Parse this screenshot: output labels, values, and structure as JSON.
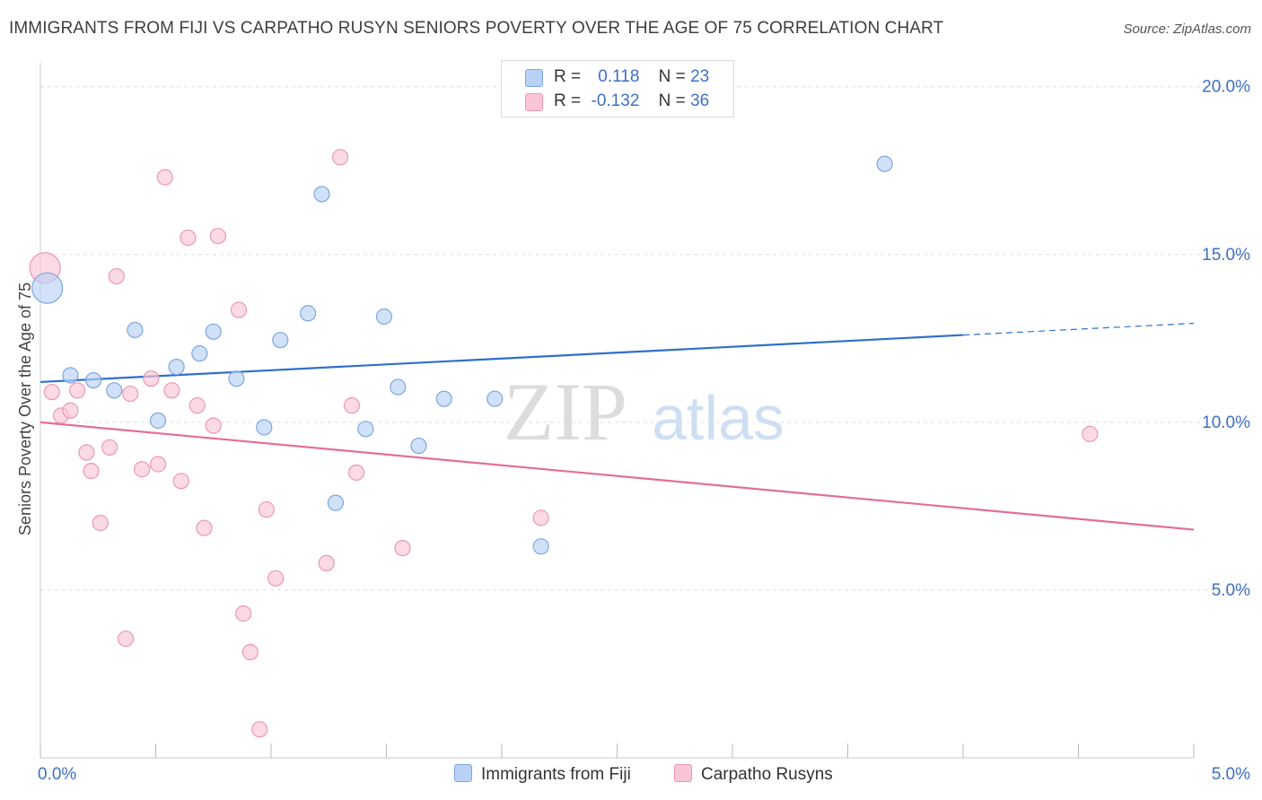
{
  "header": {
    "title": "IMMIGRANTS FROM FIJI VS CARPATHO RUSYN SENIORS POVERTY OVER THE AGE OF 75 CORRELATION CHART",
    "source": "Source: ZipAtlas.com"
  },
  "watermark": {
    "zip": "ZIP",
    "atlas": "atlas"
  },
  "legend": {
    "fiji": {
      "r_label": "R =",
      "r_value": "0.118",
      "n_label": "N =",
      "n_value": "23"
    },
    "rusyn": {
      "r_label": "R =",
      "r_value": "-0.132",
      "n_label": "N =",
      "n_value": "36"
    }
  },
  "bottom_legend": {
    "fiji": "Immigrants from Fiji",
    "rusyn": "Carpatho Rusyns"
  },
  "colors": {
    "fiji_fill": "#b9d1f5",
    "fiji_stroke": "#7ea6e0",
    "fiji_line": "#2f6fcc",
    "rusyn_fill": "#f9c6d5",
    "rusyn_stroke": "#ec98b2",
    "rusyn_line": "#e46d96",
    "tick_label": "#3f6fc6",
    "grid": "#dddddd"
  },
  "chart_data": {
    "type": "scatter",
    "title": "IMMIGRANTS FROM FIJI VS CARPATHO RUSYN SENIORS POVERTY OVER THE AGE OF 75 CORRELATION CHART",
    "xlabel": "",
    "ylabel": "Seniors Poverty Over the Age of 75",
    "xlim": [
      0,
      5
    ],
    "ylim": [
      0,
      20.5
    ],
    "x_tick_labels": [
      {
        "value": 0,
        "label": "0.0%"
      },
      {
        "value": 5,
        "label": "5.0%"
      }
    ],
    "y_tick_labels": [
      {
        "value": 5,
        "label": "5.0%"
      },
      {
        "value": 10,
        "label": "10.0%"
      },
      {
        "value": 15,
        "label": "15.0%"
      },
      {
        "value": 20,
        "label": "20.0%"
      }
    ],
    "series": [
      {
        "name": "Immigrants from Fiji",
        "r": 0.118,
        "n": 23,
        "trend": {
          "x0": 0,
          "y0": 11.2,
          "x1": 4,
          "y1": 12.6,
          "dashed_to_x": 5,
          "dashed_to_y": 12.95
        },
        "points": [
          {
            "x": 0.03,
            "y": 14.0,
            "size": "large"
          },
          {
            "x": 0.13,
            "y": 11.4
          },
          {
            "x": 0.23,
            "y": 11.25
          },
          {
            "x": 0.32,
            "y": 10.95
          },
          {
            "x": 0.41,
            "y": 12.75
          },
          {
            "x": 0.51,
            "y": 10.05
          },
          {
            "x": 0.59,
            "y": 11.65
          },
          {
            "x": 0.69,
            "y": 12.05
          },
          {
            "x": 0.75,
            "y": 12.7
          },
          {
            "x": 0.85,
            "y": 11.3
          },
          {
            "x": 0.97,
            "y": 9.85
          },
          {
            "x": 1.04,
            "y": 12.45
          },
          {
            "x": 1.16,
            "y": 13.25
          },
          {
            "x": 1.22,
            "y": 16.8
          },
          {
            "x": 1.28,
            "y": 7.6
          },
          {
            "x": 1.41,
            "y": 9.8
          },
          {
            "x": 1.49,
            "y": 13.15
          },
          {
            "x": 1.55,
            "y": 11.05
          },
          {
            "x": 1.64,
            "y": 9.3
          },
          {
            "x": 1.75,
            "y": 10.7
          },
          {
            "x": 1.97,
            "y": 10.7
          },
          {
            "x": 2.17,
            "y": 6.3
          },
          {
            "x": 3.66,
            "y": 17.7
          }
        ]
      },
      {
        "name": "Carpatho Rusyns",
        "r": -0.132,
        "n": 36,
        "trend": {
          "x0": 0,
          "y0": 10.0,
          "x1": 5,
          "y1": 6.8
        },
        "points": [
          {
            "x": 0.02,
            "y": 14.6,
            "size": "large"
          },
          {
            "x": 0.05,
            "y": 10.9
          },
          {
            "x": 0.09,
            "y": 10.2
          },
          {
            "x": 0.13,
            "y": 10.35
          },
          {
            "x": 0.16,
            "y": 10.95
          },
          {
            "x": 0.2,
            "y": 9.1
          },
          {
            "x": 0.22,
            "y": 8.55
          },
          {
            "x": 0.26,
            "y": 7.0
          },
          {
            "x": 0.3,
            "y": 9.25
          },
          {
            "x": 0.33,
            "y": 14.35
          },
          {
            "x": 0.37,
            "y": 3.55
          },
          {
            "x": 0.39,
            "y": 10.85
          },
          {
            "x": 0.44,
            "y": 8.6
          },
          {
            "x": 0.48,
            "y": 11.3
          },
          {
            "x": 0.51,
            "y": 8.75
          },
          {
            "x": 0.54,
            "y": 17.3
          },
          {
            "x": 0.57,
            "y": 10.95
          },
          {
            "x": 0.61,
            "y": 8.25
          },
          {
            "x": 0.64,
            "y": 15.5
          },
          {
            "x": 0.68,
            "y": 10.5
          },
          {
            "x": 0.71,
            "y": 6.85
          },
          {
            "x": 0.75,
            "y": 9.9
          },
          {
            "x": 0.77,
            "y": 15.55
          },
          {
            "x": 0.86,
            "y": 13.35
          },
          {
            "x": 0.88,
            "y": 4.3
          },
          {
            "x": 0.91,
            "y": 3.15
          },
          {
            "x": 0.95,
            "y": 0.85
          },
          {
            "x": 0.98,
            "y": 7.4
          },
          {
            "x": 1.02,
            "y": 5.35
          },
          {
            "x": 1.24,
            "y": 5.8
          },
          {
            "x": 1.3,
            "y": 17.9
          },
          {
            "x": 1.35,
            "y": 10.5
          },
          {
            "x": 1.37,
            "y": 8.5
          },
          {
            "x": 1.57,
            "y": 6.25
          },
          {
            "x": 2.17,
            "y": 7.15
          },
          {
            "x": 4.55,
            "y": 9.65
          }
        ]
      }
    ]
  }
}
